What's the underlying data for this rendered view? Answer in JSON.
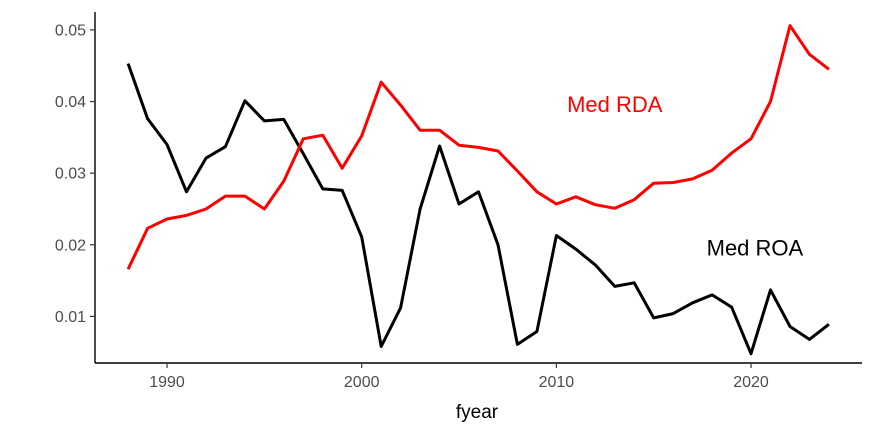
{
  "chart_data": {
    "type": "line",
    "title": "",
    "xlabel": "fyear",
    "ylabel": "",
    "xlim": [
      1986.3,
      2025.7
    ],
    "ylim": [
      0.0035,
      0.0525
    ],
    "grid": false,
    "legend": "none",
    "x_ticks": [
      1990,
      2000,
      2010,
      2020
    ],
    "x_tick_labels": [
      "1990",
      "2000",
      "2010",
      "2020"
    ],
    "y_ticks": [
      0.01,
      0.02,
      0.03,
      0.04,
      0.05
    ],
    "y_tick_labels": [
      "0.01",
      "0.02",
      "0.03",
      "0.04",
      "0.05"
    ],
    "x": [
      1988,
      1989,
      1990,
      1991,
      1992,
      1993,
      1994,
      1995,
      1996,
      1997,
      1998,
      1999,
      2000,
      2001,
      2002,
      2003,
      2004,
      2005,
      2006,
      2007,
      2008,
      2009,
      2010,
      2011,
      2012,
      2013,
      2014,
      2015,
      2016,
      2017,
      2018,
      2019,
      2020,
      2021,
      2022,
      2023,
      2024
    ],
    "series": [
      {
        "name": "Med ROA",
        "color": "#000000",
        "values": [
          0.0453,
          0.0376,
          0.034,
          0.0274,
          0.0321,
          0.0337,
          0.0401,
          0.0373,
          0.0375,
          0.0327,
          0.0278,
          0.0276,
          0.0211,
          0.0058,
          0.0112,
          0.025,
          0.0338,
          0.0257,
          0.0274,
          0.02,
          0.0061,
          0.0079,
          0.0213,
          0.0194,
          0.0172,
          0.0142,
          0.0147,
          0.0098,
          0.0104,
          0.0119,
          0.013,
          0.0113,
          0.0048,
          0.0137,
          0.0086,
          0.0068,
          0.0089
        ]
      },
      {
        "name": "Med RDA",
        "color": "#ff0000",
        "values": [
          0.0166,
          0.0223,
          0.0236,
          0.0241,
          0.025,
          0.0268,
          0.0268,
          0.025,
          0.0289,
          0.0348,
          0.0353,
          0.0307,
          0.0352,
          0.0427,
          0.0395,
          0.036,
          0.036,
          0.0339,
          0.0336,
          0.0331,
          0.0303,
          0.0274,
          0.0257,
          0.0267,
          0.0256,
          0.0251,
          0.0263,
          0.0286,
          0.0287,
          0.0292,
          0.0304,
          0.0328,
          0.0348,
          0.04,
          0.0506,
          0.0466,
          0.0445
        ]
      }
    ],
    "annotations": [
      {
        "text": "Med RDA",
        "series": "Med RDA",
        "x": 2013.0,
        "y": 0.0395,
        "color": "#ff0000"
      },
      {
        "text": "Med ROA",
        "series": "Med ROA",
        "x": 2020.2,
        "y": 0.0195,
        "color": "#000000"
      }
    ]
  }
}
